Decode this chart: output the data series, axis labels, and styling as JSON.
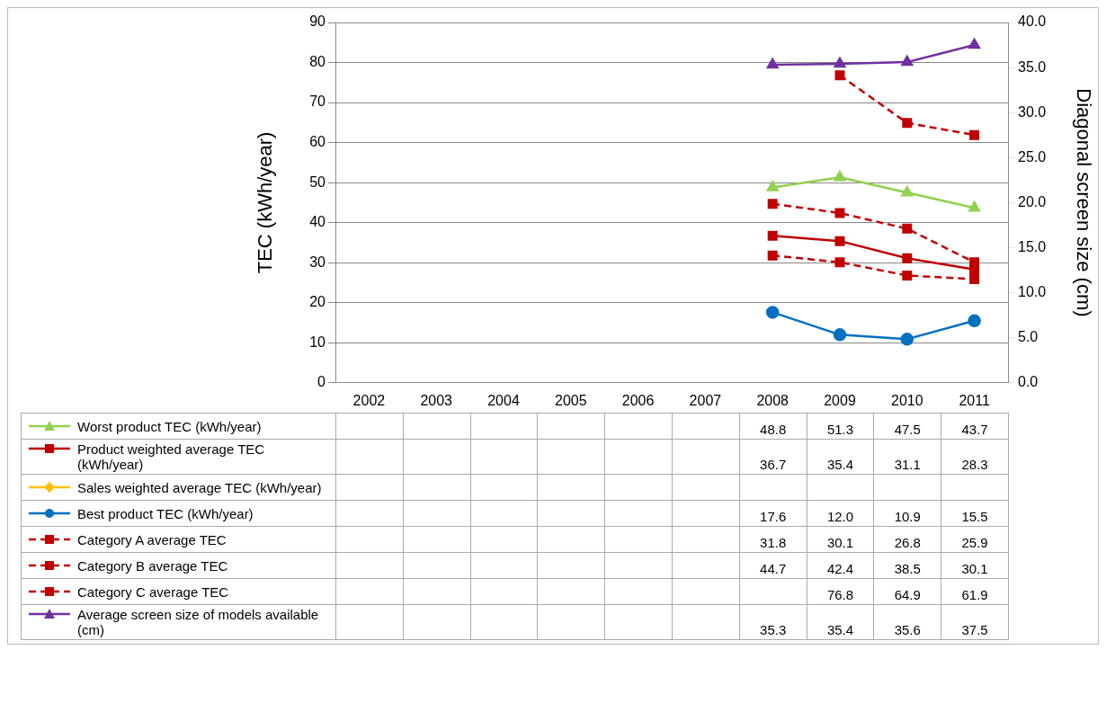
{
  "chart_data": {
    "type": "line",
    "ylabel": "TEC (kWh/year)",
    "y2label": "Diagonal screen size (cm)",
    "categories": [
      "2002",
      "2003",
      "2004",
      "2005",
      "2006",
      "2007",
      "2008",
      "2009",
      "2010",
      "2011"
    ],
    "ylim": [
      0,
      90
    ],
    "yticks": [
      0,
      10,
      20,
      30,
      40,
      50,
      60,
      70,
      80,
      90
    ],
    "y2lim": [
      0,
      40
    ],
    "y2ticks": [
      {
        "value": 0,
        "label": "0.0"
      },
      {
        "value": 5,
        "label": "5.0"
      },
      {
        "value": 10,
        "label": "10.0"
      },
      {
        "value": 15,
        "label": "15.0"
      },
      {
        "value": 20,
        "label": "20.0"
      },
      {
        "value": 25,
        "label": "25.0"
      },
      {
        "value": 30,
        "label": "30.0"
      },
      {
        "value": 35,
        "label": "35.0"
      },
      {
        "value": 40,
        "label": "40.0"
      }
    ],
    "grid": "y",
    "legend": "bottom",
    "series": [
      {
        "name": "Worst product TEC  (kWh/year)",
        "color": "#92d050",
        "marker": "triangle",
        "line_style": "solid",
        "values": [
          null,
          null,
          null,
          null,
          null,
          null,
          48.8,
          51.3,
          47.5,
          43.7
        ],
        "value_labels": [
          null,
          null,
          null,
          null,
          null,
          null,
          "48.8",
          "51.3",
          "47.5",
          "43.7"
        ]
      },
      {
        "name": "Product weighted average TEC (kWh/year)",
        "color": "#c00000",
        "marker": "square",
        "line_style": "solid",
        "values": [
          null,
          null,
          null,
          null,
          null,
          null,
          36.7,
          35.4,
          31.1,
          28.3
        ],
        "value_labels": [
          null,
          null,
          null,
          null,
          null,
          null,
          "36.7",
          "35.4",
          "31.1",
          "28.3"
        ]
      },
      {
        "name": "Sales weighted average TEC (kWh/year)",
        "color": "#ffc000",
        "marker": "diamond",
        "line_style": "solid",
        "values": [
          null,
          null,
          null,
          null,
          null,
          null,
          null,
          null,
          null,
          null
        ]
      },
      {
        "name": "Best product TEC  (kWh/year)",
        "color": "#0070c0",
        "marker": "circle",
        "line_style": "solid",
        "values": [
          null,
          null,
          null,
          null,
          null,
          null,
          17.6,
          12.0,
          10.9,
          15.5
        ],
        "value_labels": [
          null,
          null,
          null,
          null,
          null,
          null,
          "17.6",
          "12.0",
          "10.9",
          "15.5"
        ]
      },
      {
        "name": "Category A average TEC",
        "color": "#c00000",
        "marker": "square",
        "line_style": "dashed",
        "values": [
          null,
          null,
          null,
          null,
          null,
          null,
          31.8,
          30.1,
          26.8,
          25.9
        ],
        "value_labels": [
          null,
          null,
          null,
          null,
          null,
          null,
          "31.8",
          "30.1",
          "26.8",
          "25.9"
        ]
      },
      {
        "name": "Category B average TEC",
        "color": "#c00000",
        "marker": "square",
        "line_style": "dashed",
        "values": [
          null,
          null,
          null,
          null,
          null,
          null,
          44.7,
          42.4,
          38.5,
          30.1
        ],
        "value_labels": [
          null,
          null,
          null,
          null,
          null,
          null,
          "44.7",
          "42.4",
          "38.5",
          "30.1"
        ]
      },
      {
        "name": "Category C average TEC",
        "color": "#c00000",
        "marker": "square",
        "line_style": "dashed",
        "values": [
          null,
          null,
          null,
          null,
          null,
          null,
          null,
          76.8,
          64.9,
          61.9
        ],
        "value_labels": [
          null,
          null,
          null,
          null,
          null,
          null,
          null,
          "76.8",
          "64.9",
          "61.9"
        ]
      },
      {
        "name": "Average screen size of models available  (cm)",
        "color": "#7030a0",
        "marker": "triangle",
        "line_style": "solid",
        "axis": "y2",
        "values": [
          null,
          null,
          null,
          null,
          null,
          null,
          35.3,
          35.4,
          35.6,
          37.5
        ],
        "value_labels": [
          null,
          null,
          null,
          null,
          null,
          null,
          "35.3",
          "35.4",
          "35.6",
          "37.5"
        ]
      }
    ]
  }
}
